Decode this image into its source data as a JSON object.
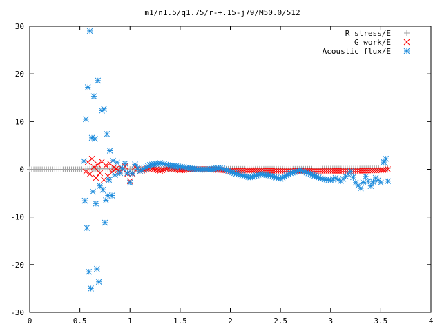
{
  "chart_data": {
    "type": "scatter",
    "title": "m1/n1.5/q1.75/r-+.15-j79/M50.0/512",
    "xlim": [
      0,
      4
    ],
    "ylim": [
      -30,
      30
    ],
    "xticks": [
      "0",
      "0.5",
      "1",
      "1.5",
      "2",
      "2.5",
      "3",
      "3.5",
      "4"
    ],
    "yticks": [
      "30",
      "20",
      "10",
      "0",
      "-10",
      "-20",
      "-30"
    ],
    "legend_position": "top-right",
    "grid": false,
    "series": [
      {
        "name": "R stress/E",
        "color": "#a0a0a0",
        "marker": "plus",
        "points": [
          [
            0.0,
            0.0
          ],
          [
            0.25,
            0.0
          ],
          [
            0.5,
            0.0
          ],
          [
            0.6,
            0.1
          ],
          [
            0.7,
            0.1
          ],
          [
            0.8,
            0.1
          ],
          [
            0.9,
            0.05
          ],
          [
            1.0,
            0.05
          ],
          [
            1.25,
            0.05
          ],
          [
            1.5,
            0.05
          ],
          [
            1.75,
            0.05
          ],
          [
            2.0,
            0.1
          ],
          [
            2.25,
            0.1
          ],
          [
            2.5,
            0.1
          ],
          [
            2.75,
            0.1
          ],
          [
            3.0,
            0.15
          ],
          [
            3.25,
            0.15
          ],
          [
            3.5,
            0.2
          ],
          [
            3.57,
            0.2
          ]
        ]
      },
      {
        "name": "G work/E",
        "color": "#ff0000",
        "marker": "cross",
        "points": [
          [
            0.56,
            -0.5
          ],
          [
            0.58,
            1.5
          ],
          [
            0.6,
            -1.0
          ],
          [
            0.62,
            2.2
          ],
          [
            0.64,
            0.5
          ],
          [
            0.66,
            -1.8
          ],
          [
            0.68,
            1.0
          ],
          [
            0.7,
            -0.8
          ],
          [
            0.72,
            1.6
          ],
          [
            0.74,
            -2.2
          ],
          [
            0.76,
            0.8
          ],
          [
            0.78,
            -1.4
          ],
          [
            0.8,
            1.2
          ],
          [
            0.82,
            -0.6
          ],
          [
            0.84,
            0.4
          ],
          [
            0.9,
            -0.5
          ],
          [
            0.95,
            0.6
          ],
          [
            1.0,
            -2.5
          ],
          [
            1.05,
            0.5
          ],
          [
            1.1,
            -0.4
          ],
          [
            1.2,
            0.3
          ],
          [
            1.3,
            -0.3
          ],
          [
            1.4,
            0.3
          ],
          [
            1.5,
            -0.2
          ],
          [
            1.6,
            0.0
          ],
          [
            1.8,
            0.0
          ],
          [
            2.0,
            -0.3
          ],
          [
            2.25,
            -0.2
          ],
          [
            2.5,
            -0.3
          ],
          [
            2.75,
            -0.3
          ],
          [
            3.0,
            -0.3
          ],
          [
            3.25,
            -0.3
          ],
          [
            3.5,
            -0.2
          ],
          [
            3.57,
            0.0
          ]
        ]
      },
      {
        "name": "Acoustic flux/E",
        "color": "#1e8cdc",
        "marker": "star",
        "points": [
          [
            0.54,
            1.7
          ],
          [
            0.55,
            -6.6
          ],
          [
            0.56,
            10.5
          ],
          [
            0.57,
            -12.3
          ],
          [
            0.58,
            17.2
          ],
          [
            0.59,
            -21.5
          ],
          [
            0.6,
            29.0
          ],
          [
            0.61,
            -25.0
          ],
          [
            0.62,
            6.6
          ],
          [
            0.63,
            -4.7
          ],
          [
            0.64,
            15.3
          ],
          [
            0.65,
            6.4
          ],
          [
            0.66,
            -7.2
          ],
          [
            0.67,
            -20.9
          ],
          [
            0.68,
            18.6
          ],
          [
            0.69,
            -23.6
          ],
          [
            0.7,
            -3.5
          ],
          [
            0.72,
            12.3
          ],
          [
            0.73,
            -4.3
          ],
          [
            0.74,
            12.7
          ],
          [
            0.75,
            -11.2
          ],
          [
            0.76,
            -6.5
          ],
          [
            0.77,
            7.4
          ],
          [
            0.78,
            -5.5
          ],
          [
            0.79,
            -2.2
          ],
          [
            0.8,
            3.9
          ],
          [
            0.82,
            -5.5
          ],
          [
            0.83,
            1.8
          ],
          [
            0.85,
            -1.2
          ],
          [
            0.87,
            1.4
          ],
          [
            0.9,
            -0.8
          ],
          [
            0.95,
            1.2
          ],
          [
            1.0,
            -2.8
          ],
          [
            1.05,
            1.0
          ],
          [
            1.1,
            -0.4
          ],
          [
            1.2,
            0.9
          ],
          [
            1.3,
            1.3
          ],
          [
            1.4,
            0.8
          ],
          [
            1.5,
            0.5
          ],
          [
            1.6,
            0.2
          ],
          [
            1.7,
            -0.1
          ],
          [
            1.8,
            0.0
          ],
          [
            1.9,
            0.3
          ],
          [
            2.0,
            -0.5
          ],
          [
            2.1,
            -1.2
          ],
          [
            2.2,
            -1.7
          ],
          [
            2.3,
            -1.0
          ],
          [
            2.4,
            -1.3
          ],
          [
            2.5,
            -2.0
          ],
          [
            2.6,
            -0.8
          ],
          [
            2.7,
            -0.2
          ],
          [
            2.8,
            -1.0
          ],
          [
            2.9,
            -1.9
          ],
          [
            3.0,
            -2.3
          ],
          [
            3.05,
            -1.8
          ],
          [
            3.1,
            -2.5
          ],
          [
            3.15,
            -1.5
          ],
          [
            3.2,
            -0.5
          ],
          [
            3.25,
            -2.8
          ],
          [
            3.3,
            -4.0
          ],
          [
            3.35,
            -1.5
          ],
          [
            3.4,
            -3.5
          ],
          [
            3.45,
            -1.8
          ],
          [
            3.5,
            -2.8
          ],
          [
            3.53,
            1.5
          ],
          [
            3.55,
            2.2
          ],
          [
            3.57,
            -2.5
          ]
        ]
      }
    ]
  }
}
